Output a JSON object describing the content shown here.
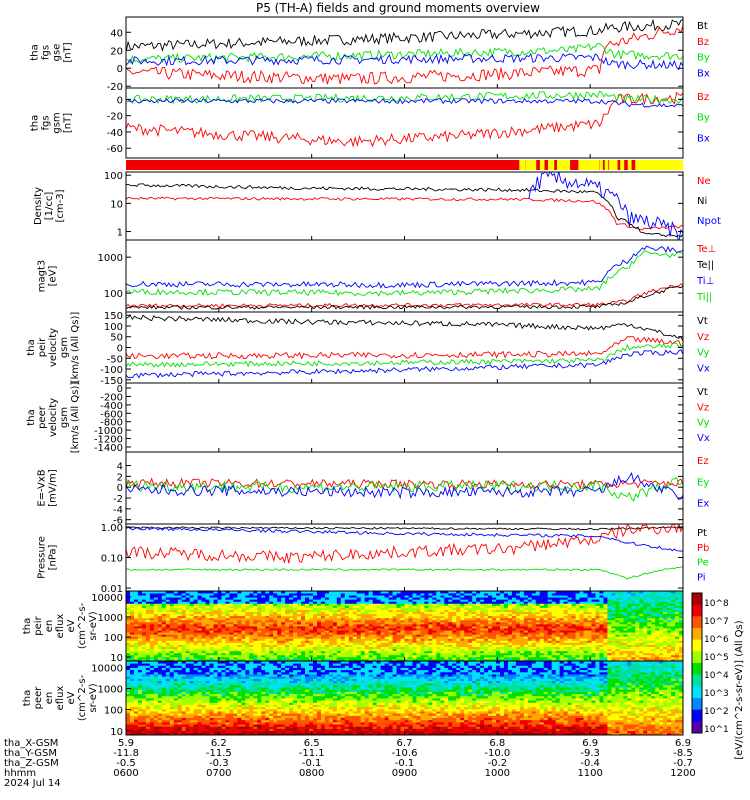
{
  "title": "P5 (TH-A) fields and ground moments overview",
  "date": "2024 Jul 14",
  "colors": {
    "black": "#000000",
    "red": "#ff0000",
    "green": "#00e000",
    "blue": "#0000ff"
  },
  "chart_data": [
    {
      "type": "line",
      "panel": "fgs_gse",
      "ylabel": "tha\nfgs\ngse\n[nT]",
      "yticks": [
        "40",
        "20",
        "0",
        "-20"
      ],
      "ylim": [
        -22,
        57
      ],
      "series": [
        {
          "name": "Bt",
          "color": "#000000",
          "profile": [
            [
              0,
              24
            ],
            [
              0.3,
              30
            ],
            [
              0.6,
              36
            ],
            [
              0.85,
              42
            ],
            [
              0.87,
              45
            ],
            [
              1,
              49
            ]
          ],
          "noise": 6
        },
        {
          "name": "Bz",
          "color": "#ff0000",
          "profile": [
            [
              0,
              -4
            ],
            [
              0.15,
              -8
            ],
            [
              0.4,
              -12
            ],
            [
              0.6,
              -8
            ],
            [
              0.85,
              -2
            ],
            [
              0.86,
              25
            ],
            [
              1,
              46
            ]
          ],
          "noise": 7
        },
        {
          "name": "By",
          "color": "#00e000",
          "profile": [
            [
              0,
              10
            ],
            [
              0.4,
              14
            ],
            [
              0.8,
              20
            ],
            [
              0.85,
              25
            ],
            [
              0.88,
              15
            ],
            [
              1,
              14
            ]
          ],
          "noise": 5
        },
        {
          "name": "Bx",
          "color": "#0000ff",
          "profile": [
            [
              0,
              8
            ],
            [
              0.5,
              10
            ],
            [
              0.85,
              12
            ],
            [
              0.87,
              5
            ],
            [
              1,
              3
            ]
          ],
          "noise": 5
        }
      ]
    },
    {
      "type": "line",
      "panel": "fgs_gsm",
      "ylabel": "tha\nfgs\ngsm\n[nT]",
      "yticks": [
        "0",
        "-20",
        "-40",
        "-60"
      ],
      "ylim": [
        -72,
        14
      ],
      "series": [
        {
          "name": "Bz",
          "color": "#ff0000",
          "profile": [
            [
              0,
              -35
            ],
            [
              0.15,
              -42
            ],
            [
              0.4,
              -52
            ],
            [
              0.6,
              -45
            ],
            [
              0.85,
              -30
            ],
            [
              0.88,
              0
            ],
            [
              1,
              2
            ]
          ],
          "noise": 7
        },
        {
          "name": "By",
          "color": "#00e000",
          "profile": [
            [
              0,
              0
            ],
            [
              0.5,
              2
            ],
            [
              0.85,
              6
            ],
            [
              0.9,
              0
            ],
            [
              1,
              0
            ]
          ],
          "noise": 5
        },
        {
          "name": "Bx",
          "color": "#0000ff",
          "profile": [
            [
              0,
              -2
            ],
            [
              0.85,
              -2
            ],
            [
              0.9,
              -6
            ],
            [
              1,
              -8
            ]
          ],
          "noise": 3
        }
      ]
    },
    {
      "type": "line",
      "panel": "density",
      "ylabel": "Density\n[1/cc]\n[cm-3]",
      "log": true,
      "yticks": [
        "100",
        "10",
        "1"
      ],
      "ylim": [
        0.5,
        130
      ],
      "series": [
        {
          "name": "Ne",
          "color": "#ff0000",
          "profile": [
            [
              0,
              15
            ],
            [
              0.7,
              14
            ],
            [
              0.84,
              12
            ],
            [
              0.88,
              2
            ],
            [
              0.92,
              1.2
            ],
            [
              1,
              1.5
            ]
          ],
          "noise": 0.05
        },
        {
          "name": "Ni",
          "color": "#000000",
          "profile": [
            [
              0,
              45
            ],
            [
              0.3,
              35
            ],
            [
              0.7,
              30
            ],
            [
              0.84,
              25
            ],
            [
              0.88,
              3
            ],
            [
              0.93,
              0.8
            ],
            [
              1,
              0.7
            ]
          ],
          "noise": 0.06
        },
        {
          "name": "Npot",
          "color": "#0000ff",
          "profile": [
            [
              0.72,
              10
            ],
            [
              0.75,
              80
            ],
            [
              0.8,
              60
            ],
            [
              0.85,
              30
            ],
            [
              0.9,
              3
            ],
            [
              1,
              0.6
            ]
          ],
          "noise": 0.3
        }
      ]
    },
    {
      "type": "line",
      "panel": "temperature",
      "ylabel": "magt3\n[eV]",
      "log": true,
      "yticks": [
        "1000",
        "100"
      ],
      "ylim": [
        30,
        3000
      ],
      "series": [
        {
          "name": "Te⊥",
          "color": "#ff0000",
          "profile": [
            [
              0,
              45
            ],
            [
              0.85,
              48
            ],
            [
              0.9,
              60
            ],
            [
              0.95,
              120
            ],
            [
              1,
              180
            ]
          ],
          "noise": 0.05
        },
        {
          "name": "Te||",
          "color": "#000000",
          "profile": [
            [
              0,
              40
            ],
            [
              0.85,
              42
            ],
            [
              0.9,
              55
            ],
            [
              0.95,
              100
            ],
            [
              1,
              160
            ]
          ],
          "noise": 0.05
        },
        {
          "name": "Ti⊥",
          "color": "#0000ff",
          "profile": [
            [
              0,
              180
            ],
            [
              0.5,
              170
            ],
            [
              0.85,
              200
            ],
            [
              0.9,
              800
            ],
            [
              0.93,
              1800
            ],
            [
              1,
              1500
            ]
          ],
          "noise": 0.08
        },
        {
          "name": "Ti||",
          "color": "#00e000",
          "profile": [
            [
              0,
              110
            ],
            [
              0.5,
              100
            ],
            [
              0.85,
              130
            ],
            [
              0.9,
              500
            ],
            [
              0.93,
              1300
            ],
            [
              1,
              1100
            ]
          ],
          "noise": 0.08
        }
      ]
    },
    {
      "type": "line",
      "panel": "peir_velocity",
      "ylabel": "tha\npeir\nvelocity\ngsm\n[km/s (All Qs)]",
      "yticks": [
        "150",
        "100",
        "50",
        "0",
        "-50",
        "-100",
        "-150"
      ],
      "ylim": [
        -165,
        165
      ],
      "series": [
        {
          "name": "Vt",
          "color": "#000000",
          "profile": [
            [
              0,
              140
            ],
            [
              0.3,
              120
            ],
            [
              0.6,
              110
            ],
            [
              0.85,
              90
            ],
            [
              0.9,
              110
            ],
            [
              1,
              40
            ]
          ],
          "noise": 12
        },
        {
          "name": "Vz",
          "color": "#ff0000",
          "profile": [
            [
              0,
              -40
            ],
            [
              0.5,
              -35
            ],
            [
              0.85,
              -30
            ],
            [
              0.9,
              40
            ],
            [
              1,
              20
            ]
          ],
          "noise": 14
        },
        {
          "name": "Vy",
          "color": "#00e000",
          "profile": [
            [
              0,
              -80
            ],
            [
              0.5,
              -70
            ],
            [
              0.85,
              -60
            ],
            [
              0.9,
              0
            ],
            [
              1,
              10
            ]
          ],
          "noise": 12
        },
        {
          "name": "Vx",
          "color": "#0000ff",
          "profile": [
            [
              0,
              -130
            ],
            [
              0.4,
              -110
            ],
            [
              0.85,
              -80
            ],
            [
              0.9,
              -30
            ],
            [
              1,
              -20
            ]
          ],
          "noise": 12
        }
      ]
    },
    {
      "type": "line",
      "panel": "peer_velocity",
      "ylabel": "tha\npeer\nvelocity\ngsm\n[km/s (All Qs)]",
      "yticks": [
        "0",
        "-200",
        "-400",
        "-600",
        "-800",
        "-1000",
        "-1200",
        "-1400"
      ],
      "ylim": [
        -1520,
        120
      ],
      "series": [
        {
          "name": "Vt",
          "color": "#000000",
          "profile": []
        },
        {
          "name": "Vz",
          "color": "#ff0000",
          "profile": []
        },
        {
          "name": "Vy",
          "color": "#00e000",
          "profile": []
        },
        {
          "name": "Vx",
          "color": "#0000ff",
          "profile": []
        }
      ]
    },
    {
      "type": "line",
      "panel": "efield",
      "ylabel": "E=-VxB\n[mV/m]",
      "yticks": [
        "4",
        "2",
        "0",
        "-2",
        "-4",
        "-6"
      ],
      "ylim": [
        -6.8,
        6.5
      ],
      "series": [
        {
          "name": "Ez",
          "color": "#ff0000",
          "profile": [
            [
              0,
              0.8
            ],
            [
              0.5,
              0.6
            ],
            [
              0.85,
              0.5
            ],
            [
              1,
              0.8
            ]
          ],
          "noise": 0.8
        },
        {
          "name": "Ey",
          "color": "#00e000",
          "profile": [
            [
              0,
              0.3
            ],
            [
              0.3,
              0
            ],
            [
              0.85,
              0.3
            ],
            [
              0.9,
              -2
            ],
            [
              1,
              1.5
            ]
          ],
          "noise": 1.0
        },
        {
          "name": "Ex",
          "color": "#0000ff",
          "profile": [
            [
              0,
              -0.5
            ],
            [
              0.5,
              -1
            ],
            [
              0.85,
              -0.8
            ],
            [
              0.9,
              2
            ],
            [
              1,
              -2
            ]
          ],
          "noise": 1.0
        }
      ]
    },
    {
      "type": "line",
      "panel": "pressure",
      "ylabel": "Pressure\n[nPa]",
      "log": true,
      "yticks": [
        "1.00",
        "0.10",
        "0.01"
      ],
      "ylim": [
        0.008,
        1.25
      ],
      "series": [
        {
          "name": "Pt",
          "color": "#000000",
          "profile": [
            [
              0,
              0.95
            ],
            [
              0.5,
              0.9
            ],
            [
              0.85,
              0.85
            ],
            [
              1,
              1.0
            ]
          ],
          "noise": 0.03
        },
        {
          "name": "Pb",
          "color": "#ff0000",
          "profile": [
            [
              0,
              0.15
            ],
            [
              0.3,
              0.1
            ],
            [
              0.7,
              0.2
            ],
            [
              0.85,
              0.4
            ],
            [
              0.9,
              0.8
            ],
            [
              1,
              1.0
            ]
          ],
          "noise": 0.2
        },
        {
          "name": "Pe",
          "color": "#00e000",
          "profile": [
            [
              0,
              0.04
            ],
            [
              0.85,
              0.04
            ],
            [
              0.9,
              0.02
            ],
            [
              1,
              0.05
            ]
          ],
          "noise": 0.03
        },
        {
          "name": "Pi",
          "color": "#0000ff",
          "profile": [
            [
              0,
              0.9
            ],
            [
              0.5,
              0.6
            ],
            [
              0.85,
              0.5
            ],
            [
              0.9,
              0.3
            ],
            [
              1,
              0.15
            ]
          ],
          "noise": 0.05
        }
      ]
    },
    {
      "type": "heatmap",
      "panel": "peir_spectrogram",
      "ylabel": "tha\npeir\nen\neflux\neV\n(cm^2-s-\nsr-eV)",
      "log": true,
      "yticks": [
        "10000",
        "1000",
        "100",
        "10"
      ]
    },
    {
      "type": "heatmap",
      "panel": "peer_spectrogram",
      "ylabel": "tha\npeer\nen\neflux\neV\n(cm^2-s-\nsr-eV)",
      "log": true,
      "yticks": [
        "10000",
        "1000",
        "100",
        "10"
      ]
    }
  ],
  "colorbar": {
    "unit": "[eV/(cm^2-s-sr-eV)] (All Qs)",
    "ticks": [
      "10^8",
      "10^7",
      "10^6",
      "10^5",
      "10^4",
      "10^3",
      "10^2",
      "10^1"
    ]
  },
  "xaxis": {
    "rows": [
      {
        "label": "tha_X-GSM",
        "values": [
          "5.9",
          "6.2",
          "6.5",
          "6.7",
          "6.8",
          "6.9",
          "6.9"
        ]
      },
      {
        "label": "tha_Y-GSM",
        "values": [
          "-11.8",
          "-11.5",
          "-11.1",
          "-10.6",
          "-10.0",
          "-9.3",
          "-8.5"
        ]
      },
      {
        "label": "tha_Z-GSM",
        "values": [
          "-0.5",
          "-0.3",
          "-0.1",
          "-0.1",
          "-0.2",
          "-0.4",
          "-0.7"
        ]
      },
      {
        "label": "hhmm",
        "values": [
          "0600",
          "0700",
          "0800",
          "0900",
          "1000",
          "1100",
          "1200"
        ]
      },
      {
        "label": "2024 Jul 14",
        "values": [
          "",
          "",
          "",
          "",
          "",
          "",
          ""
        ]
      }
    ]
  }
}
